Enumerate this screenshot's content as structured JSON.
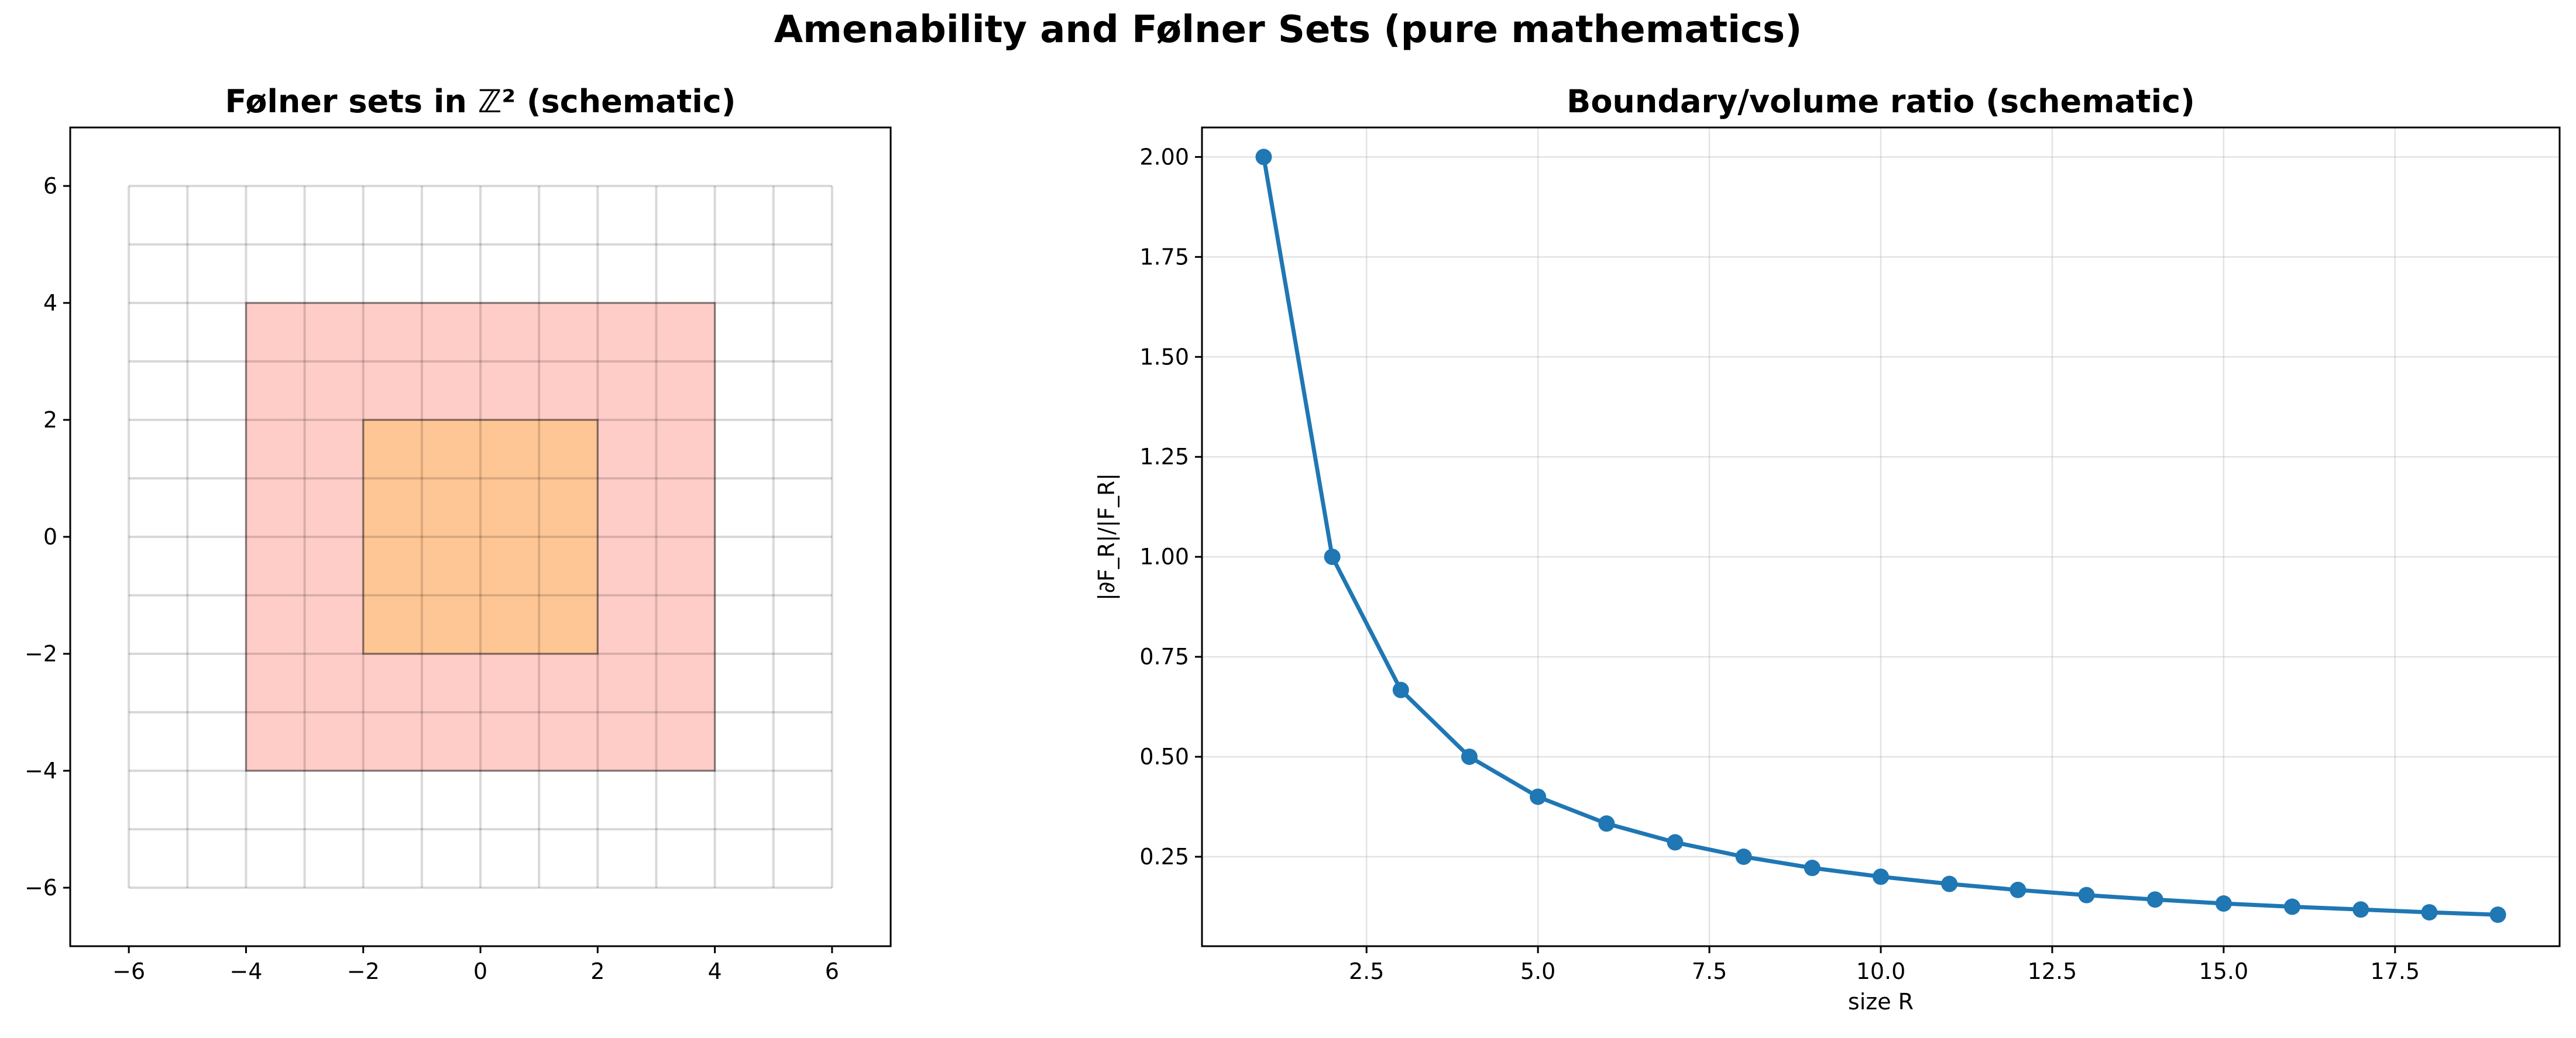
{
  "figure": {
    "suptitle": "Amenability and Følner Sets (pure mathematics)"
  },
  "chart_data": [
    {
      "type": "area",
      "title": "Følner sets in ℤ² (schematic)",
      "xlabel": "",
      "ylabel": "",
      "xlim": [
        -7,
        7
      ],
      "ylim": [
        -7,
        7
      ],
      "x_ticks": [
        -6,
        -4,
        -2,
        0,
        2,
        4,
        6
      ],
      "y_ticks": [
        -6,
        -4,
        -2,
        0,
        2,
        4,
        6
      ],
      "x_tick_labels": [
        "−6",
        "−4",
        "−2",
        "0",
        "2",
        "4",
        "6"
      ],
      "y_tick_labels": [
        "−6",
        "−4",
        "−2",
        "0",
        "2",
        "4",
        "6"
      ],
      "lattice": {
        "min": -6,
        "max": 6,
        "step": 1,
        "color": "#000000",
        "opacity": 0.15
      },
      "regions": [
        {
          "x0": -4,
          "x1": 4,
          "y0": -4,
          "y1": 4,
          "fill": "#ffcdc8"
        },
        {
          "x0": -2,
          "x1": 2,
          "y0": -2,
          "y1": 2,
          "fill": "#ffc695"
        }
      ],
      "grid": false
    },
    {
      "type": "line",
      "title": "Boundary/volume ratio (schematic)",
      "xlabel": "size R",
      "ylabel": "|∂F_R|/|F_R|",
      "xlim": [
        0.1,
        19.9
      ],
      "ylim": [
        0.0263,
        2.0737
      ],
      "x_ticks": [
        2.5,
        5.0,
        7.5,
        10.0,
        12.5,
        15.0,
        17.5
      ],
      "x_tick_labels": [
        "2.5",
        "5.0",
        "7.5",
        "10.0",
        "12.5",
        "15.0",
        "17.5"
      ],
      "y_ticks": [
        0.25,
        0.5,
        0.75,
        1.0,
        1.25,
        1.5,
        1.75,
        2.0
      ],
      "y_tick_labels": [
        "0.25",
        "0.50",
        "0.75",
        "1.00",
        "1.25",
        "1.50",
        "1.75",
        "2.00"
      ],
      "grid": true,
      "color": "#1f77b4",
      "x": [
        1,
        2,
        3,
        4,
        5,
        6,
        7,
        8,
        9,
        10,
        11,
        12,
        13,
        14,
        15,
        16,
        17,
        18,
        19
      ],
      "y": [
        2.0,
        1.0,
        0.667,
        0.5,
        0.4,
        0.333,
        0.286,
        0.25,
        0.222,
        0.2,
        0.182,
        0.167,
        0.154,
        0.143,
        0.133,
        0.125,
        0.118,
        0.111,
        0.105
      ]
    }
  ]
}
